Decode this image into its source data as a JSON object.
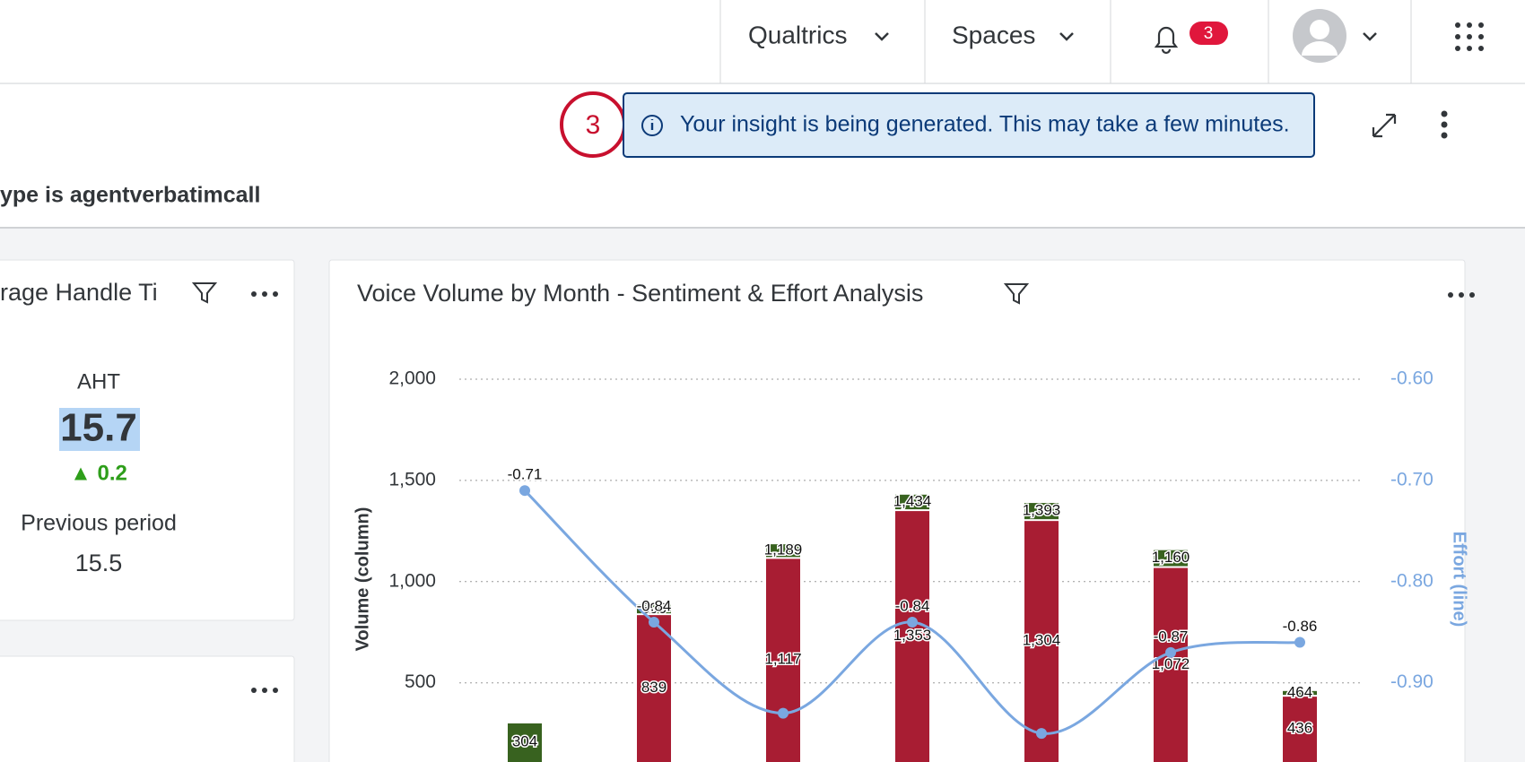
{
  "nav": {
    "items": [
      "Qualtrics",
      "Spaces"
    ],
    "notification_count": "3"
  },
  "toolbar": {
    "step": "3",
    "message": "Your insight is being generated. This may take a few minutes.",
    "filter_text": "ype is agentverbatimcall"
  },
  "kpi_card": {
    "title": "rage Handle Ti",
    "metric": "AHT",
    "value": "15.7",
    "change": "▲ 0.2",
    "previous_label": "Previous period",
    "previous_value": "15.5"
  },
  "chart_data": {
    "type": "bar",
    "title": "Voice Volume by Month - Sentiment & Effort Analysis",
    "ylabel": "Volume (column)",
    "y2label": "Effort (line)",
    "categories": [
      null,
      null,
      null,
      null,
      null,
      null,
      null
    ],
    "series": [
      {
        "color": "#a81d33",
        "values": [
          null,
          839,
          1117,
          1353,
          1304,
          1072,
          436
        ],
        "value_labels": [
          null,
          "839",
          "1,117",
          "1,353",
          "1,304",
          "1,072",
          "436"
        ]
      },
      {
        "color": "#38621f",
        "values": [
          304,
          890,
          1189,
          1434,
          1393,
          1160,
          464
        ],
        "value_labels": [
          "304",
          "890",
          "1,189",
          "1,434",
          "1,393",
          "1,160",
          "464"
        ]
      },
      {
        "type": "line",
        "axis": "y2",
        "color": "#7aa7e0",
        "values": [
          -0.71,
          -0.84,
          -0.93,
          -0.84,
          -0.95,
          -0.87,
          -0.86
        ],
        "value_labels": [
          "-0.71",
          "-0.84",
          null,
          "-0.84",
          null,
          "-0.87",
          "-0.86"
        ]
      }
    ],
    "ylim": [
      0,
      2000
    ],
    "yticks": [
      {
        "value": 500,
        "label": "500"
      },
      {
        "value": 1000,
        "label": "1,000"
      },
      {
        "value": 1500,
        "label": "1,500"
      },
      {
        "value": 2000,
        "label": "2,000"
      }
    ],
    "y2lim": [
      -1.0,
      -0.6
    ],
    "y2ticks": [
      {
        "value": -0.9,
        "label": "-0.90"
      },
      {
        "value": -0.8,
        "label": "-0.80"
      },
      {
        "value": -0.7,
        "label": "-0.70"
      },
      {
        "value": -0.6,
        "label": "-0.60"
      }
    ],
    "grid": true
  }
}
